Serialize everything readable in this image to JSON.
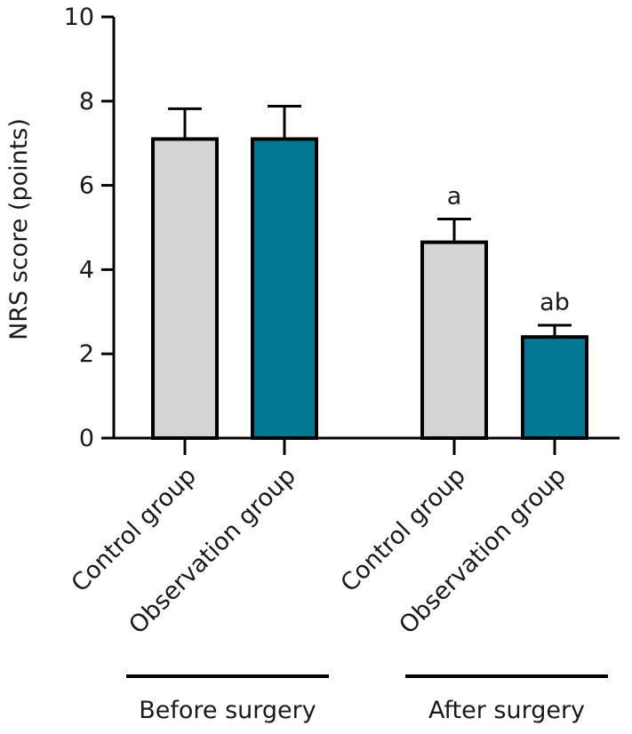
{
  "chart_data": {
    "type": "bar",
    "title": "",
    "xlabel": "",
    "ylabel": "NRS score (points)",
    "ylim": [
      0,
      10
    ],
    "yticks": [
      "0",
      "2",
      "4",
      "6",
      "8",
      "10"
    ],
    "grid": false,
    "legend": "none",
    "bars": [
      {
        "label": "Control group",
        "value": 7.1,
        "error": 0.72,
        "annotation": "",
        "color": "#d4d4d4"
      },
      {
        "label": "Observation group",
        "value": 7.1,
        "error": 0.78,
        "annotation": "",
        "color": "#037893"
      },
      {
        "label": "Control group",
        "value": 4.65,
        "error": 0.55,
        "annotation": "a",
        "color": "#d4d4d4"
      },
      {
        "label": "Observation group",
        "value": 2.4,
        "error": 0.28,
        "annotation": "ab",
        "color": "#037893"
      }
    ],
    "groups": [
      {
        "label": "Before surgery",
        "bars": [
          0,
          1
        ]
      },
      {
        "label": "After surgery",
        "bars": [
          2,
          3
        ]
      }
    ]
  }
}
